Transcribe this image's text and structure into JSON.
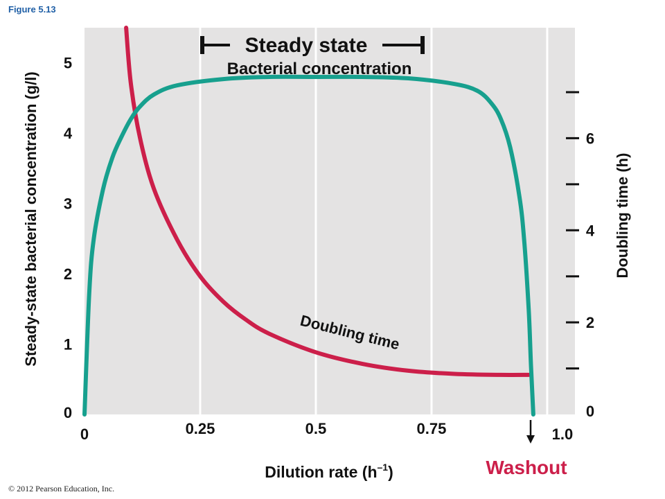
{
  "figure_label": "Figure 5.13",
  "copyright": "© 2012 Pearson Education, Inc.",
  "chart_data": {
    "type": "line",
    "title": "",
    "xlabel": "Dilution rate (h",
    "xlabel_sup": "–1",
    "xlabel_close": ")",
    "x_ticks": [
      {
        "value": 0,
        "label": "0"
      },
      {
        "value": 0.25,
        "label": "0.25"
      },
      {
        "value": 0.5,
        "label": "0.5"
      },
      {
        "value": 0.75,
        "label": "0.75"
      },
      {
        "value": 1.0,
        "label": "1.0"
      }
    ],
    "xlim": [
      0,
      1.06
    ],
    "y_left": {
      "label": "Steady-state bacterial concentration (g/l)",
      "lim": [
        0,
        5.5
      ],
      "ticks": [
        {
          "value": 0,
          "label": "0"
        },
        {
          "value": 1,
          "label": "1"
        },
        {
          "value": 2,
          "label": "2"
        },
        {
          "value": 3,
          "label": "3"
        },
        {
          "value": 4,
          "label": "4"
        },
        {
          "value": 5,
          "label": "5"
        }
      ]
    },
    "y_right": {
      "label": "Doubling time (h)",
      "lim": [
        0,
        8.4
      ],
      "ticks": [
        {
          "value": 0,
          "label": "0"
        },
        {
          "value": 2,
          "label": "2"
        },
        {
          "value": 4,
          "label": "4"
        },
        {
          "value": 6,
          "label": "6"
        }
      ],
      "minor_ticks": [
        1,
        2,
        3,
        4,
        5,
        6,
        7
      ]
    },
    "grid": "vertical",
    "series": [
      {
        "name": "Bacterial concentration",
        "axis": "left",
        "color": "#17a08e",
        "x": [
          0.0,
          0.01,
          0.02,
          0.04,
          0.06,
          0.08,
          0.1,
          0.12,
          0.15,
          0.2,
          0.3,
          0.4,
          0.5,
          0.6,
          0.7,
          0.8,
          0.85,
          0.88,
          0.9,
          0.92,
          0.94,
          0.95,
          0.96,
          0.965,
          0.97
        ],
        "y": [
          0.0,
          1.7,
          2.5,
          3.2,
          3.65,
          3.95,
          4.2,
          4.38,
          4.55,
          4.68,
          4.77,
          4.8,
          4.8,
          4.8,
          4.78,
          4.7,
          4.6,
          4.42,
          4.2,
          3.8,
          3.1,
          2.5,
          1.5,
          0.7,
          0.0
        ]
      },
      {
        "name": "Doubling time",
        "axis": "right",
        "color": "#cc1f4a",
        "x": [
          0.09,
          0.1,
          0.12,
          0.15,
          0.2,
          0.25,
          0.3,
          0.35,
          0.4,
          0.5,
          0.6,
          0.7,
          0.8,
          0.9,
          0.96
        ],
        "y": [
          8.4,
          7.2,
          6.0,
          4.9,
          3.8,
          3.0,
          2.45,
          2.05,
          1.75,
          1.35,
          1.1,
          0.95,
          0.88,
          0.86,
          0.86
        ]
      }
    ],
    "annotations": {
      "steady_state": "Steady state",
      "bacterial_concentration": "Bacterial concentration",
      "doubling_time": "Doubling time",
      "washout": "Washout"
    },
    "colors": {
      "plot_background": "#e4e3e3",
      "grid": "#ffffff",
      "washout": "#cc1f4a"
    }
  }
}
